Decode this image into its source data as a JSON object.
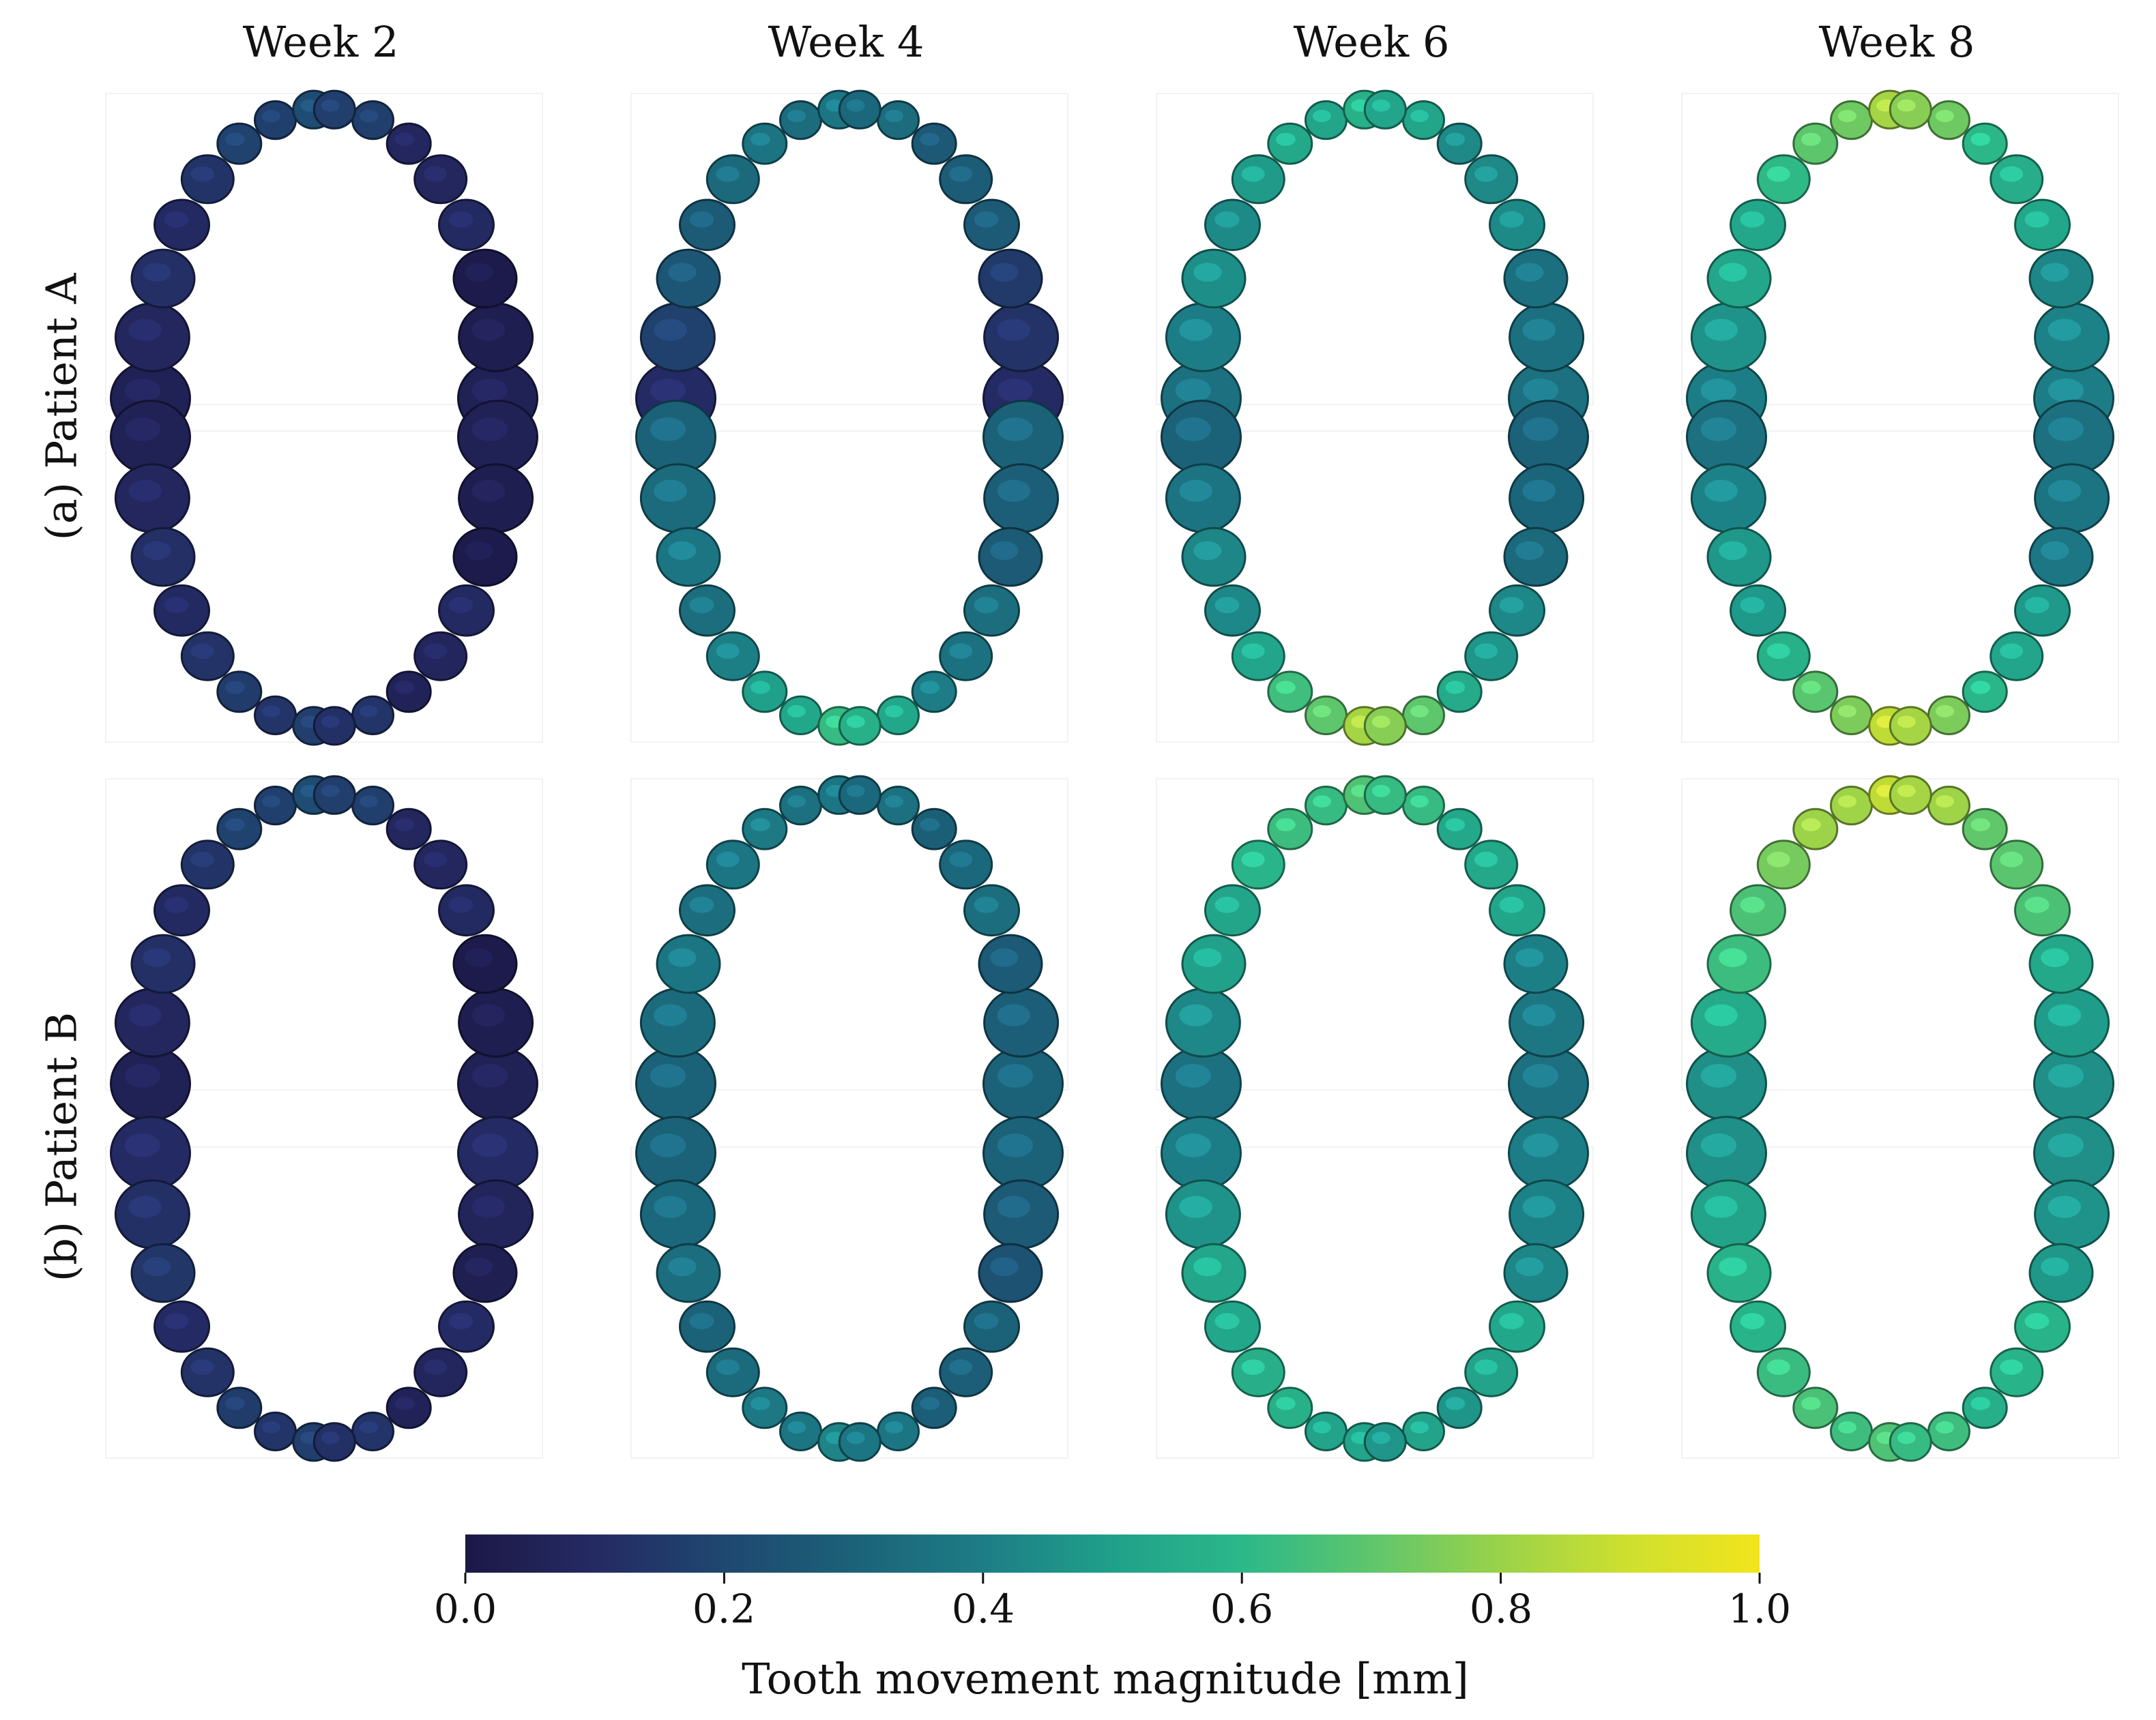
{
  "columns": [
    "Week 2",
    "Week 4",
    "Week 6",
    "Week 8"
  ],
  "rows": [
    "(a) Patient A",
    "(b) Patient B"
  ],
  "colorbar": {
    "ticks": [
      "0.0",
      "0.2",
      "0.4",
      "0.6",
      "0.8",
      "1.0"
    ],
    "label": "Tooth movement magnitude [mm]",
    "colormap": "viridis",
    "range": [
      0.0,
      1.0
    ]
  },
  "panels": {
    "patient_a": {
      "upper": {
        "front": [
          0.2,
          0.35,
          0.55,
          0.8
        ],
        "mid": [
          0.1,
          0.3,
          0.45,
          0.55
        ],
        "back": [
          0.05,
          0.1,
          0.35,
          0.4
        ]
      },
      "lower": {
        "front": [
          0.15,
          0.6,
          0.8,
          0.85
        ],
        "mid": [
          0.1,
          0.35,
          0.45,
          0.5
        ],
        "back": [
          0.05,
          0.3,
          0.3,
          0.35
        ]
      }
    },
    "patient_b": {
      "upper": {
        "front": [
          0.2,
          0.35,
          0.65,
          0.85
        ],
        "mid": [
          0.1,
          0.35,
          0.55,
          0.7
        ],
        "back": [
          0.05,
          0.3,
          0.35,
          0.45
        ]
      },
      "lower": {
        "front": [
          0.15,
          0.4,
          0.5,
          0.65
        ],
        "mid": [
          0.1,
          0.3,
          0.55,
          0.6
        ],
        "back": [
          0.1,
          0.3,
          0.4,
          0.45
        ]
      }
    }
  }
}
